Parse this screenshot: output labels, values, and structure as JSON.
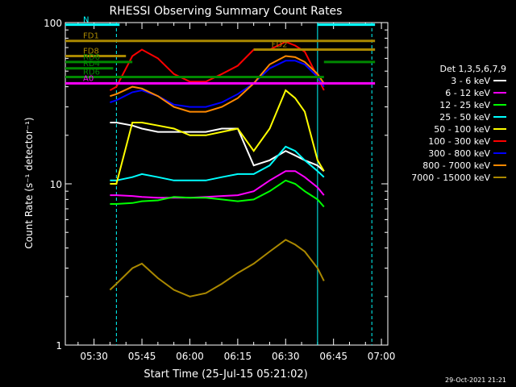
{
  "chart_data": {
    "type": "line",
    "title": "RHESSI Observing Summary Count Rates",
    "xlabel": "Start Time (25-Jul-15 05:21:02)",
    "ylabel": "Count Rate (s⁻¹ detector⁻¹)",
    "x_unit": "time (UT, HH:MM)",
    "x_range": [
      "05:21",
      "07:02"
    ],
    "ylim": [
      1,
      100
    ],
    "yscale": "log",
    "x_ticks": [
      "05:30",
      "05:45",
      "06:00",
      "06:15",
      "06:30",
      "06:45",
      "07:00"
    ],
    "y_ticks": [
      "1",
      "10",
      "100"
    ],
    "legend_title": "Det 1,3,5,6,7,9",
    "legend_position": "right",
    "grid": false,
    "timestamp": "29-Oct-2021 21:21",
    "series": [
      {
        "name": "3 - 6 keV",
        "color": "#ffffff",
        "x": [
          "05:35",
          "05:37",
          "05:42",
          "05:45",
          "05:50",
          "05:55",
          "06:00",
          "06:05",
          "06:10",
          "06:15",
          "06:20",
          "06:25",
          "06:30",
          "06:33",
          "06:36",
          "06:40",
          "06:42"
        ],
        "y": [
          24,
          24,
          23,
          22,
          21,
          21,
          21,
          21,
          22,
          22,
          13,
          14,
          16,
          15,
          14,
          13,
          12
        ]
      },
      {
        "name": "6 - 12 keV",
        "color": "#ff00ff",
        "x": [
          "05:35",
          "05:37",
          "05:42",
          "05:45",
          "05:50",
          "05:55",
          "06:00",
          "06:05",
          "06:10",
          "06:15",
          "06:20",
          "06:25",
          "06:30",
          "06:33",
          "06:36",
          "06:40",
          "06:42"
        ],
        "y": [
          8.5,
          8.5,
          8.4,
          8.3,
          8.2,
          8.2,
          8.2,
          8.3,
          8.4,
          8.5,
          9,
          10.5,
          12,
          12,
          11,
          9.5,
          8.5
        ]
      },
      {
        "name": "12 - 25 keV",
        "color": "#00ff00",
        "x": [
          "05:35",
          "05:37",
          "05:42",
          "05:45",
          "05:50",
          "05:55",
          "06:00",
          "06:05",
          "06:10",
          "06:15",
          "06:20",
          "06:25",
          "06:30",
          "06:33",
          "06:36",
          "06:40",
          "06:42"
        ],
        "y": [
          7.5,
          7.5,
          7.6,
          7.8,
          7.9,
          8.3,
          8.2,
          8.2,
          8.0,
          7.8,
          8.0,
          9.0,
          10.5,
          10.0,
          9.0,
          8.0,
          7.2
        ]
      },
      {
        "name": "25 - 50 keV",
        "color": "#00ffff",
        "x": [
          "05:35",
          "05:37",
          "05:42",
          "05:45",
          "05:50",
          "05:55",
          "06:00",
          "06:05",
          "06:10",
          "06:15",
          "06:20",
          "06:25",
          "06:30",
          "06:33",
          "06:36",
          "06:40",
          "06:42"
        ],
        "y": [
          10.5,
          10.5,
          11,
          11.5,
          11,
          10.5,
          10.5,
          10.5,
          11,
          11.5,
          11.5,
          13,
          17,
          16,
          14,
          12,
          11
        ]
      },
      {
        "name": "50 - 100 keV",
        "color": "#ffff00",
        "x": [
          "05:35",
          "05:37",
          "05:42",
          "05:45",
          "05:50",
          "05:55",
          "06:00",
          "06:05",
          "06:10",
          "06:15",
          "06:20",
          "06:25",
          "06:30",
          "06:33",
          "06:36",
          "06:40",
          "06:42"
        ],
        "y": [
          10,
          10,
          24,
          24,
          23,
          22,
          20,
          20,
          21,
          22,
          16,
          22,
          38,
          34,
          28,
          14,
          12
        ]
      },
      {
        "name": "100 - 300 keV",
        "color": "#ff0000",
        "x": [
          "05:35",
          "05:37",
          "05:42",
          "05:45",
          "05:50",
          "05:55",
          "06:00",
          "06:05",
          "06:10",
          "06:15",
          "06:20",
          "06:25",
          "06:30",
          "06:33",
          "06:36",
          "06:40",
          "06:42"
        ],
        "y": [
          38,
          40,
          62,
          68,
          60,
          48,
          43,
          43,
          48,
          54,
          68,
          68,
          76,
          72,
          66,
          46,
          38
        ]
      },
      {
        "name": "300 - 800 keV",
        "color": "#0000ff",
        "x": [
          "05:35",
          "05:37",
          "05:42",
          "05:45",
          "05:50",
          "05:55",
          "06:00",
          "06:05",
          "06:10",
          "06:15",
          "06:20",
          "06:25",
          "06:30",
          "06:33",
          "06:36",
          "06:40",
          "06:42"
        ],
        "y": [
          32,
          33,
          37,
          38,
          35,
          31,
          30,
          30,
          32,
          36,
          42,
          52,
          58,
          58,
          55,
          46,
          40
        ]
      },
      {
        "name": "800 - 7000 keV",
        "color": "#ff8800",
        "x": [
          "05:35",
          "05:37",
          "05:42",
          "05:45",
          "05:50",
          "05:55",
          "06:00",
          "06:05",
          "06:10",
          "06:15",
          "06:20",
          "06:25",
          "06:30",
          "06:33",
          "06:36",
          "06:40",
          "06:42"
        ],
        "y": [
          35,
          36,
          40,
          39,
          35,
          30,
          28,
          28,
          30,
          34,
          42,
          55,
          62,
          61,
          57,
          48,
          42
        ]
      },
      {
        "name": "7000 - 15000 keV",
        "color": "#aa8800",
        "x": [
          "05:35",
          "05:37",
          "05:42",
          "05:45",
          "05:50",
          "05:55",
          "06:00",
          "06:05",
          "06:10",
          "06:15",
          "06:20",
          "06:25",
          "06:30",
          "06:33",
          "06:36",
          "06:40",
          "06:42"
        ],
        "y": [
          2.2,
          2.4,
          3.0,
          3.2,
          2.6,
          2.2,
          2.0,
          2.1,
          2.4,
          2.8,
          3.2,
          3.8,
          4.5,
          4.2,
          3.8,
          3.0,
          2.5
        ]
      }
    ],
    "flags": [
      {
        "label": "N",
        "color": "#00ffff",
        "intervals": [
          [
            "05:21",
            "05:38"
          ],
          [
            "06:40",
            "06:58"
          ]
        ],
        "level": 97
      },
      {
        "label": "FD1",
        "color": "#aa8800",
        "intervals": [
          [
            "05:21",
            "06:58"
          ]
        ],
        "level": 77
      },
      {
        "label": "FD2",
        "color": "#aa8800",
        "intervals": [
          [
            "06:20",
            "06:58"
          ]
        ],
        "level": 68
      },
      {
        "label": "FD8",
        "color": "#aa8800",
        "intervals": [
          [
            "05:21",
            "05:40"
          ]
        ],
        "level": 62
      },
      {
        "label": "RD6",
        "color": "#008800",
        "intervals": [
          [
            "05:21",
            "05:42"
          ],
          [
            "06:42",
            "06:58"
          ]
        ],
        "level": 57
      },
      {
        "label": "RD4",
        "color": "#008800",
        "intervals": [
          [
            "05:21",
            "05:36"
          ]
        ],
        "level": 52
      },
      {
        "label": "RD6",
        "color": "#008800",
        "intervals": [
          [
            "05:21",
            "06:42"
          ]
        ],
        "level": 46
      },
      {
        "label": "A0",
        "color": "#ff00ff",
        "intervals": [
          [
            "05:21",
            "06:58"
          ]
        ],
        "level": 42
      }
    ],
    "markers": [
      {
        "type": "dashed",
        "x": "05:37",
        "color": "#00ffff"
      },
      {
        "type": "solid",
        "x": "06:40",
        "color": "#00ffff"
      },
      {
        "type": "dashed",
        "x": "06:57",
        "color": "#00ffff"
      }
    ]
  }
}
